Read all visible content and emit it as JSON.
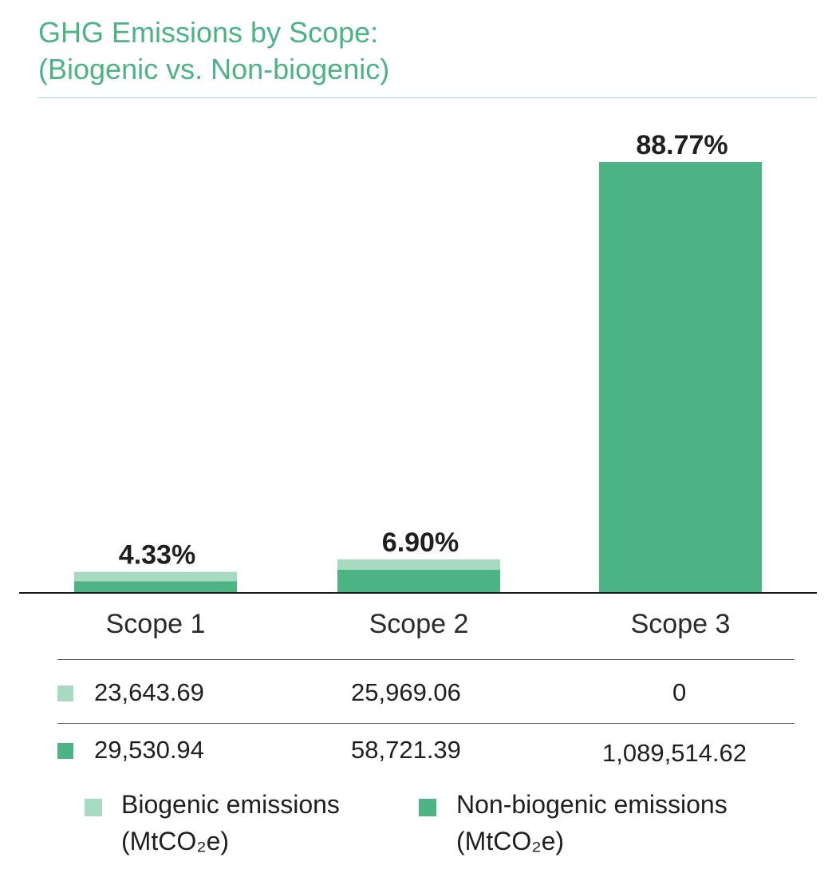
{
  "title_line1": "GHG Emissions by Scope:",
  "title_line2": "(Biogenic vs. Non-biogenic)",
  "colors": {
    "biogenic": "#a7dbc1",
    "non_biogenic": "#4bb384",
    "title": "#4bb384"
  },
  "chart_data": {
    "type": "bar",
    "stacked": true,
    "categories": [
      "Scope 1",
      "Scope 2",
      "Scope 3"
    ],
    "series": [
      {
        "name": "Biogenic emissions (MtCO₂e)",
        "values": [
          23643.69,
          25969.06,
          0
        ]
      },
      {
        "name": "Non-biogenic emissions (MtCO₂e)",
        "values": [
          29530.94,
          58721.39,
          1089514.62
        ]
      }
    ],
    "bar_labels": [
      "4.33%",
      "6.90%",
      "88.77%"
    ],
    "grid": false,
    "legend_position": "bottom"
  },
  "table": {
    "rows": [
      {
        "series": "biogenic",
        "cells": [
          "23,643.69",
          "25,969.06",
          "0"
        ]
      },
      {
        "series": "non_biogenic",
        "cells": [
          "29,530.94",
          "58,721.39",
          "1,089,514.62"
        ]
      }
    ]
  },
  "legend": {
    "biogenic_line1": "Biogenic emissions",
    "biogenic_line2": "(MtCO₂e)",
    "non_biogenic_line1": "Non-biogenic emissions",
    "non_biogenic_line2": "(MtCO₂e)"
  }
}
